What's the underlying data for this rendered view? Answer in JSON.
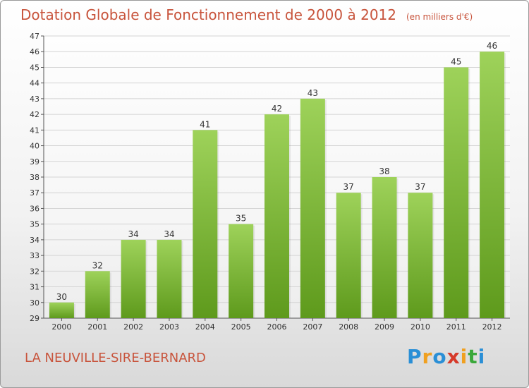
{
  "header": {
    "title": "Dotation Globale de Fonctionnement de 2000 à 2012",
    "units": "(en milliers d'€)"
  },
  "footer": {
    "commune": "LA NEUVILLE-SIRE-BERNARD",
    "logo": "Proxiti"
  },
  "colors": {
    "bar_top": "#9ed25a",
    "bar_bottom": "#5e9a1c",
    "title": "#c8543c",
    "grid": "#d4d4d4"
  },
  "chart_data": {
    "type": "bar",
    "categories": [
      "2000",
      "2001",
      "2002",
      "2003",
      "2004",
      "2005",
      "2006",
      "2007",
      "2008",
      "2009",
      "2010",
      "2011",
      "2012"
    ],
    "values": [
      30,
      32,
      34,
      34,
      41,
      35,
      42,
      43,
      37,
      38,
      37,
      45,
      46
    ],
    "ylim": [
      29,
      47
    ],
    "yticks": [
      29,
      30,
      31,
      32,
      33,
      34,
      35,
      36,
      37,
      38,
      39,
      40,
      41,
      42,
      43,
      44,
      45,
      46,
      47
    ],
    "grid": true,
    "data_labels": true
  }
}
